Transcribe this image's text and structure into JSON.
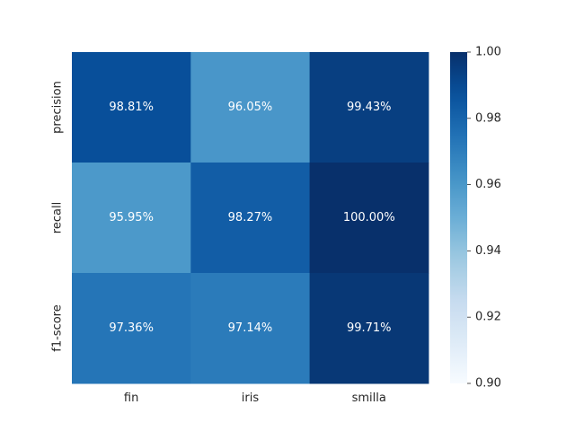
{
  "chart_data": {
    "type": "heatmap",
    "title": "",
    "xlabel": "",
    "ylabel": "",
    "columns": [
      "fin",
      "iris",
      "smilla"
    ],
    "rows": [
      "precision",
      "recall",
      "f1-score"
    ],
    "values": [
      [
        0.9881,
        0.9605,
        0.9943
      ],
      [
        0.9595,
        0.9827,
        1.0
      ],
      [
        0.9736,
        0.9714,
        0.9971
      ]
    ],
    "cell_labels": [
      [
        "98.81%",
        "96.05%",
        "99.43%"
      ],
      [
        "95.95%",
        "98.27%",
        "100.00%"
      ],
      [
        "97.36%",
        "97.14%",
        "99.71%"
      ]
    ],
    "colormap": "Blues",
    "vmin": 0.9,
    "vmax": 1.0,
    "colorbar_ticks": [
      "0.90",
      "0.92",
      "0.94",
      "0.96",
      "0.98",
      "1.00"
    ],
    "colorbar_tick_values": [
      0.9,
      0.92,
      0.94,
      0.96,
      0.98,
      1.0
    ],
    "grid": false
  }
}
